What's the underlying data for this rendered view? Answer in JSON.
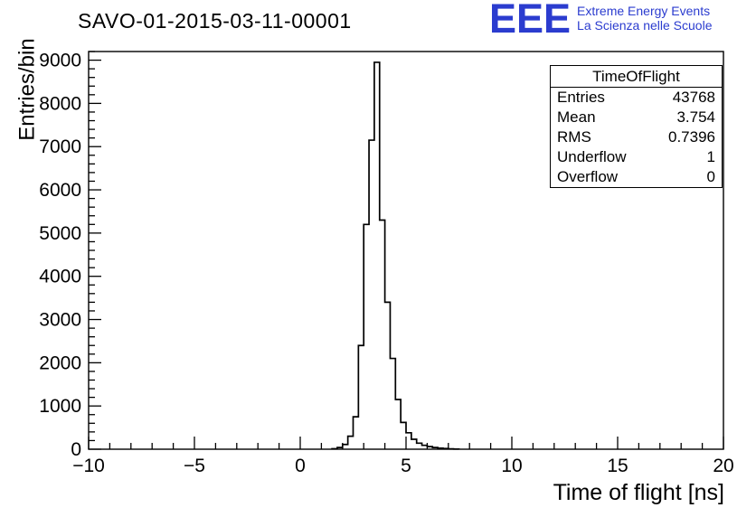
{
  "title": "SAVO-01-2015-03-11-00001",
  "logo": {
    "eee": "EEE",
    "line1": "Extreme Energy Events",
    "line2": "La Scienza nelle Scuole",
    "color": "#2b3ccf"
  },
  "stats": {
    "title": "TimeOfFlight",
    "rows": [
      {
        "label": "Entries",
        "value": "43768"
      },
      {
        "label": "Mean",
        "value": "3.754"
      },
      {
        "label": "RMS",
        "value": "0.7396"
      },
      {
        "label": "Underflow",
        "value": "1"
      },
      {
        "label": "Overflow",
        "value": "0"
      }
    ]
  },
  "chart_data": {
    "type": "bar",
    "subtype": "step-histogram",
    "title": "SAVO-01-2015-03-11-00001",
    "xlabel": "Time of flight [ns]",
    "ylabel": "Entries/bin",
    "xlim": [
      -10,
      20
    ],
    "ylim": [
      0,
      9200
    ],
    "grid": false,
    "line_color": "#000000",
    "x_major_ticks": [
      -10,
      -5,
      0,
      5,
      10,
      15,
      20
    ],
    "x_minor_step": 1,
    "y_major_ticks": [
      0,
      1000,
      2000,
      3000,
      4000,
      5000,
      6000,
      7000,
      8000,
      9000
    ],
    "y_minor_step": 200,
    "bins": {
      "start": 1.5,
      "width": 0.25,
      "values": [
        10,
        40,
        110,
        300,
        750,
        2400,
        5200,
        7150,
        8950,
        5300,
        3400,
        2100,
        1150,
        620,
        380,
        230,
        140,
        90,
        60,
        40,
        25,
        15,
        8,
        4
      ]
    }
  }
}
